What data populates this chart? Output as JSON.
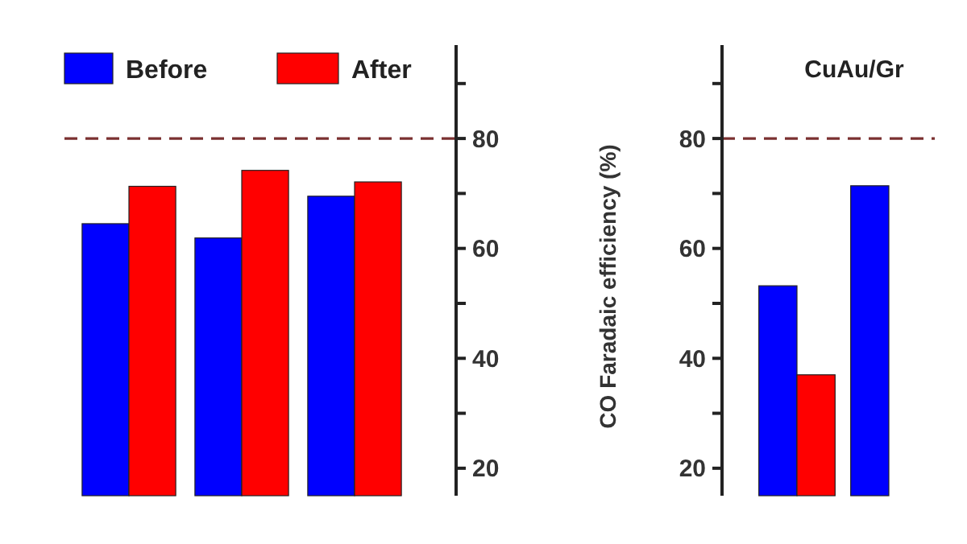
{
  "chart_data": [
    {
      "type": "bar",
      "categories": [
        null,
        null,
        null
      ],
      "series": [
        {
          "name": "Before",
          "color": "#0000ff",
          "values": [
            64.5,
            61.9,
            69.5
          ]
        },
        {
          "name": "After",
          "color": "#ff0000",
          "values": [
            71.3,
            74.2,
            72.1
          ]
        }
      ],
      "ylim": [
        15,
        97
      ],
      "yticks": [
        20,
        {
          "value": 30,
          "label": null
        },
        40,
        {
          "value": 50,
          "label": null
        },
        60,
        {
          "value": 70,
          "label": null
        },
        80,
        {
          "value": 90,
          "label": null
        }
      ],
      "ref_lines": [
        {
          "axis": "y",
          "value": 80,
          "color": "#7a3030",
          "line_style": "dashed"
        }
      ],
      "legend": "top left",
      "grid": false
    },
    {
      "type": "bar",
      "title": "CuAu/Gr",
      "ylabel": "CO Faradaic efficiency (%)",
      "categories": [
        null,
        null
      ],
      "series": [
        {
          "color": "#0000ff",
          "values": [
            53.2,
            71.4
          ]
        },
        {
          "color": "#ff0000",
          "values": [
            37,
            null
          ]
        }
      ],
      "ylim": [
        15,
        97
      ],
      "yticks": [
        20,
        {
          "value": 30,
          "label": null
        },
        40,
        {
          "value": 50,
          "label": null
        },
        60,
        {
          "value": 70,
          "label": null
        },
        80,
        {
          "value": 90,
          "label": null
        }
      ],
      "ref_lines": [
        {
          "axis": "y",
          "value": 80,
          "color": "#7a3030",
          "line_style": "dashed"
        }
      ],
      "legend": false,
      "grid": false
    }
  ]
}
